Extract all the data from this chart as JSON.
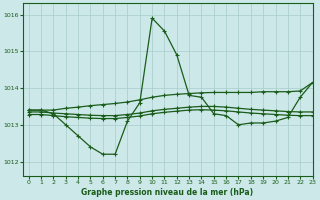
{
  "title": "Graphe pression niveau de la mer (hPa)",
  "background_color": "#cce8e8",
  "grid_color": "#a8cccc",
  "line_color": "#1a5c1a",
  "xlim": [
    -0.5,
    23
  ],
  "ylim": [
    1011.6,
    1016.3
  ],
  "yticks": [
    1012,
    1013,
    1014,
    1015,
    1016
  ],
  "xticks": [
    0,
    1,
    2,
    3,
    4,
    5,
    6,
    7,
    8,
    9,
    10,
    11,
    12,
    13,
    14,
    15,
    16,
    17,
    18,
    19,
    20,
    21,
    22,
    23
  ],
  "series_main": [
    1013.4,
    1013.4,
    1013.3,
    1013.0,
    1012.7,
    1012.4,
    1012.2,
    1012.2,
    1013.1,
    1013.6,
    1015.9,
    1015.55,
    1014.9,
    1013.8,
    1013.75,
    1013.3,
    1013.25,
    1013.0,
    1013.05,
    1013.05,
    1013.1,
    1013.2,
    1013.75,
    1014.15
  ],
  "series_flat1": [
    1013.4,
    1013.4,
    1013.4,
    1013.45,
    1013.48,
    1013.52,
    1013.55,
    1013.58,
    1013.62,
    1013.68,
    1013.75,
    1013.8,
    1013.83,
    1013.85,
    1013.87,
    1013.88,
    1013.88,
    1013.88,
    1013.88,
    1013.9,
    1013.9,
    1013.9,
    1013.92,
    1014.15
  ],
  "series_flat2": [
    1013.35,
    1013.35,
    1013.32,
    1013.3,
    1013.28,
    1013.26,
    1013.25,
    1013.25,
    1013.28,
    1013.32,
    1013.38,
    1013.42,
    1013.45,
    1013.48,
    1013.5,
    1013.5,
    1013.48,
    1013.45,
    1013.42,
    1013.4,
    1013.38,
    1013.36,
    1013.35,
    1013.35
  ],
  "series_flat3": [
    1013.28,
    1013.28,
    1013.25,
    1013.22,
    1013.2,
    1013.18,
    1013.17,
    1013.17,
    1013.2,
    1013.24,
    1013.3,
    1013.34,
    1013.37,
    1013.4,
    1013.41,
    1013.4,
    1013.38,
    1013.35,
    1013.32,
    1013.3,
    1013.28,
    1013.26,
    1013.25,
    1013.25
  ]
}
